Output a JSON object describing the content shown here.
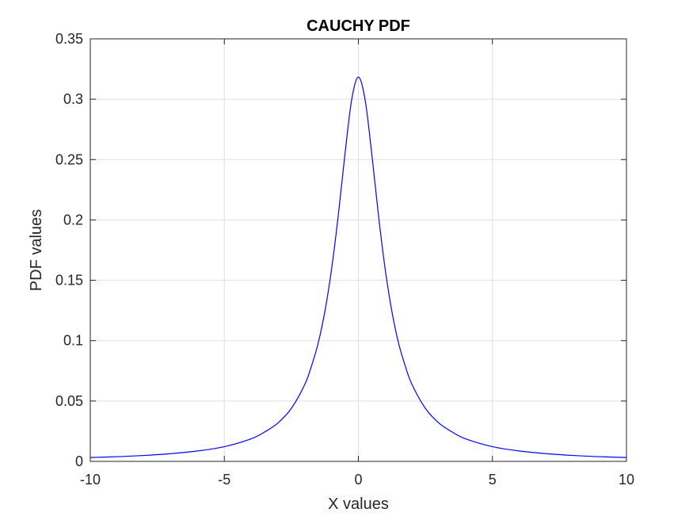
{
  "chart_data": {
    "type": "line",
    "title": "CAUCHY PDF",
    "xlabel": "X values",
    "ylabel": "PDF values",
    "xlim": [
      -10,
      10
    ],
    "ylim": [
      0,
      0.35
    ],
    "xticks": [
      -10,
      -5,
      0,
      5,
      10
    ],
    "xtick_labels": [
      "-10",
      "-5",
      "0",
      "5",
      "10"
    ],
    "yticks": [
      0,
      0.05,
      0.1,
      0.15,
      0.2,
      0.25,
      0.3,
      0.35
    ],
    "ytick_labels": [
      "0",
      "0.05",
      "0.1",
      "0.15",
      "0.2",
      "0.25",
      "0.3",
      "0.35"
    ],
    "grid": true,
    "line_color": "#0000ff",
    "series": [
      {
        "x": [
          -10,
          -9,
          -8,
          -7,
          -6,
          -5,
          -4,
          -3.5,
          -3,
          -2.5,
          -2,
          -1.75,
          -1.5,
          -1.25,
          -1,
          -0.75,
          -0.5,
          -0.25,
          0,
          0.25,
          0.5,
          0.75,
          1,
          1.25,
          1.5,
          1.75,
          2,
          2.5,
          3,
          3.5,
          4,
          5,
          6,
          7,
          8,
          9,
          10
        ],
        "values": [
          0.0032,
          0.0039,
          0.0049,
          0.0064,
          0.0086,
          0.0122,
          0.0187,
          0.0243,
          0.0318,
          0.0439,
          0.0637,
          0.0789,
          0.0979,
          0.1242,
          0.1592,
          0.2037,
          0.2546,
          0.2996,
          0.3183,
          0.2996,
          0.2546,
          0.2037,
          0.1592,
          0.1242,
          0.0979,
          0.0789,
          0.0637,
          0.0439,
          0.0318,
          0.0243,
          0.0187,
          0.0122,
          0.0086,
          0.0064,
          0.0049,
          0.0039,
          0.0032
        ]
      }
    ]
  }
}
